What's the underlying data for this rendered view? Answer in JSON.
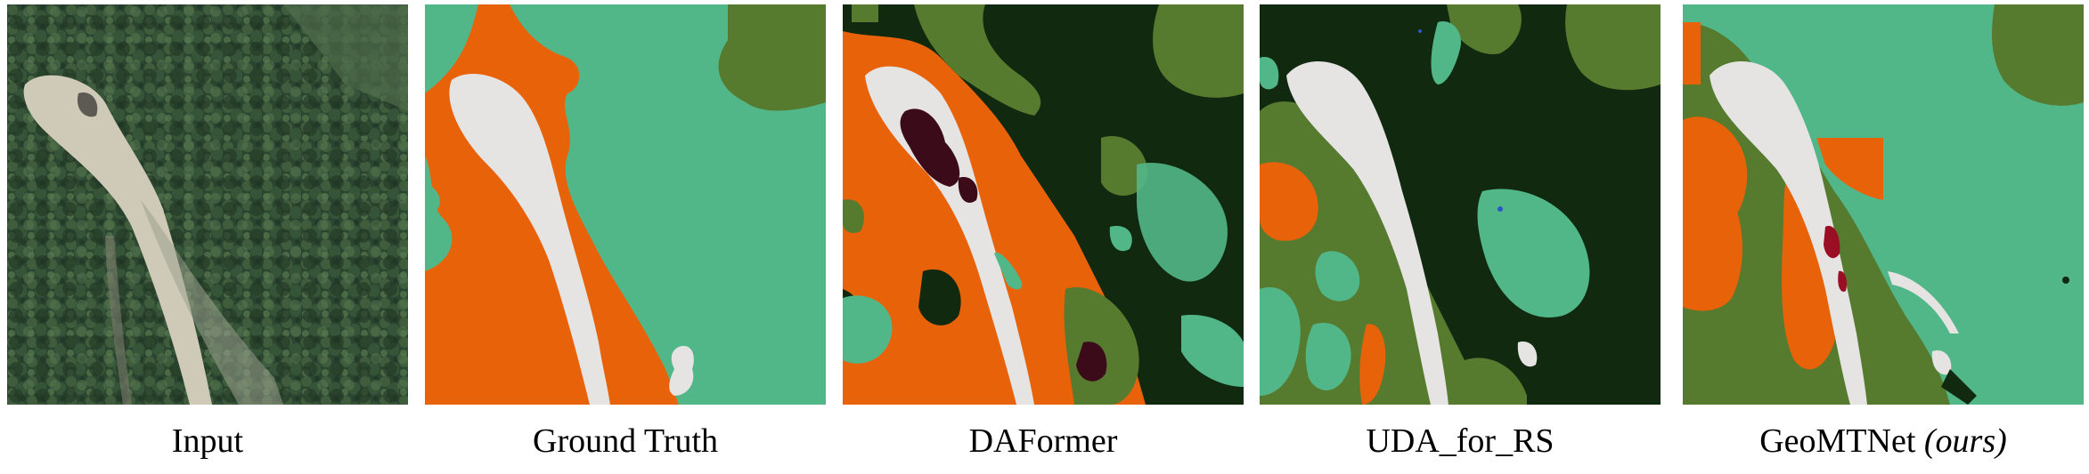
{
  "panels": [
    {
      "caption": "Input",
      "note": ""
    },
    {
      "caption": "Ground Truth",
      "note": ""
    },
    {
      "caption": "DAFormer",
      "note": ""
    },
    {
      "caption": "UDA_for_RS",
      "note": ""
    },
    {
      "caption": "GeoMTNet",
      "note": "(ours)"
    }
  ],
  "colors": {
    "road": "#e6e3e3",
    "forest": "#52b788",
    "agriculture": "#e8620a",
    "dark_forest": "#10290f",
    "grass": "#567a2e",
    "barren": "#3b0b1a",
    "water": "#2d56c9",
    "photo_forest": "#2f4a30",
    "photo_clearing": "#cfc9b8"
  }
}
